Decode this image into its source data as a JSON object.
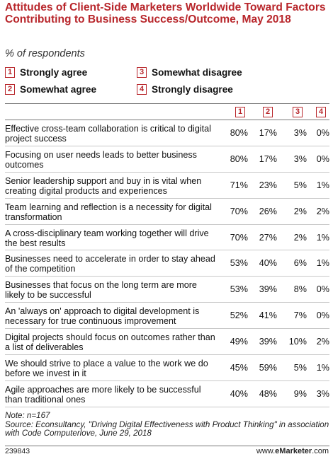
{
  "chart_data": {
    "type": "table",
    "title": "Attitudes of Client-Side Marketers Worldwide Toward Factors Contributing to Business Success/Outcome, May 2018",
    "subtitle": "% of respondents",
    "legend": [
      {
        "num": "1",
        "label": "Strongly agree"
      },
      {
        "num": "2",
        "label": "Somewhat agree"
      },
      {
        "num": "3",
        "label": "Somewhat disagree"
      },
      {
        "num": "4",
        "label": "Strongly disagree"
      }
    ],
    "columns": [
      "1",
      "2",
      "3",
      "4"
    ],
    "rows": [
      {
        "label": "Effective cross-team collaboration is critical to digital project success",
        "values": [
          "80%",
          "17%",
          "3%",
          "0%"
        ]
      },
      {
        "label": "Focusing on user needs leads to better business outcomes",
        "values": [
          "80%",
          "17%",
          "3%",
          "0%"
        ]
      },
      {
        "label": "Senior leadership support and buy in is vital when creating digital products and experiences",
        "values": [
          "71%",
          "23%",
          "5%",
          "1%"
        ]
      },
      {
        "label": "Team learning and reflection is a necessity for digital transformation",
        "values": [
          "70%",
          "26%",
          "2%",
          "2%"
        ]
      },
      {
        "label": "A cross-disciplinary team working together will drive the best results",
        "values": [
          "70%",
          "27%",
          "2%",
          "1%"
        ]
      },
      {
        "label": "Businesses need to accelerate in order to stay ahead of the competition",
        "values": [
          "53%",
          "40%",
          "6%",
          "1%"
        ]
      },
      {
        "label": "Businesses that focus on the long term are more likely to be successful",
        "values": [
          "53%",
          "39%",
          "8%",
          "0%"
        ]
      },
      {
        "label": "An 'always on' approach to digital development is necessary for true continuous improvement",
        "values": [
          "52%",
          "41%",
          "7%",
          "0%"
        ]
      },
      {
        "label": "Digital projects should focus on outcomes rather than a list of deliverables",
        "values": [
          "49%",
          "39%",
          "10%",
          "2%"
        ]
      },
      {
        "label": "We should strive to place a value to the work we do before we invest in it",
        "values": [
          "45%",
          "59%",
          "5%",
          "1%"
        ]
      },
      {
        "label": "Agile approaches are more likely to be successful than traditional ones",
        "values": [
          "40%",
          "48%",
          "9%",
          "3%"
        ]
      }
    ]
  },
  "footer": {
    "note": "Note: n=167",
    "source": "Source: Econsultancy, \"Driving Digital Effectiveness with Product Thinking\" in association with Code Computerlove, June 29, 2018",
    "chart_id": "239843",
    "brand_prefix": "www.",
    "brand_name": "eMarketer",
    "brand_suffix": ".com"
  },
  "colors": {
    "accent": "#b8262b",
    "text": "#111111",
    "rule": "#777777"
  }
}
